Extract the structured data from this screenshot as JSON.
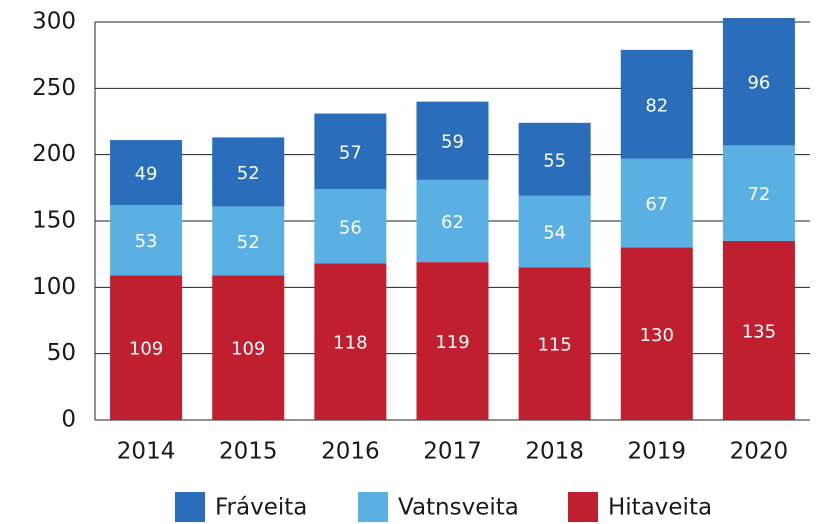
{
  "chart_data": {
    "type": "stacked_bar",
    "categories": [
      "2014",
      "2015",
      "2016",
      "2017",
      "2018",
      "2019",
      "2020"
    ],
    "series": [
      {
        "name": "Fráveita",
        "color": "#2a6ebb",
        "values": [
          49,
          52,
          57,
          59,
          55,
          82,
          96
        ]
      },
      {
        "name": "Vatnsveita",
        "color": "#5ab0e2",
        "values": [
          53,
          52,
          56,
          62,
          54,
          67,
          72
        ]
      },
      {
        "name": "Hitaveita",
        "color": "#c01f2f",
        "values": [
          109,
          109,
          118,
          119,
          115,
          130,
          135
        ]
      }
    ],
    "ylim": [
      0,
      300
    ],
    "yticks": [
      0,
      50,
      100,
      150,
      200,
      250,
      300
    ],
    "grid": true,
    "legend": "bottom"
  }
}
